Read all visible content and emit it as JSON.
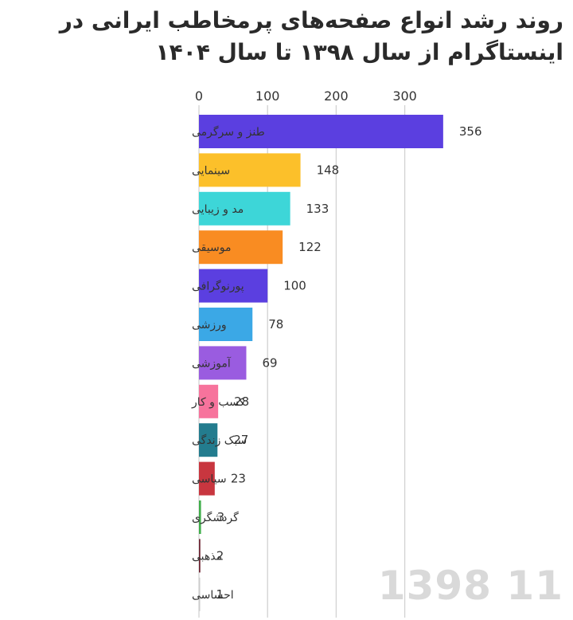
{
  "chart_data": {
    "type": "bar",
    "orientation": "horizontal",
    "title": "روند رشد انواع صفحه‌های پرمخاطب ایرانی در اینستاگرام از سال ۱۳۹۸ تا سال ۱۴۰۴",
    "categories": [
      "طنز و سرگرمی",
      "سینمایی",
      "مد و زیبایی",
      "موسیقی",
      "پورنوگرافی",
      "ورزشی",
      "آموزشی",
      "کسب و کار",
      "سبک زندگی",
      "سیاسی",
      "گردشگری",
      "مذهبی",
      "احساسی"
    ],
    "values": [
      356,
      148,
      133,
      122,
      100,
      78,
      69,
      28,
      27,
      23,
      3,
      2,
      1
    ],
    "colors": [
      "#5b3fe0",
      "#fcc02a",
      "#3dd6d8",
      "#f98c22",
      "#5b3fe0",
      "#3ba8e6",
      "#9a5ce0",
      "#f7739c",
      "#237c8e",
      "#c8363f",
      "#3fae4a",
      "#6b2230",
      "#cccccc"
    ],
    "xlim": [
      0,
      360
    ],
    "xticks": [
      0,
      100,
      200,
      300
    ],
    "xaxis_position": "top",
    "grid": true,
    "period_label": "1398 11"
  }
}
